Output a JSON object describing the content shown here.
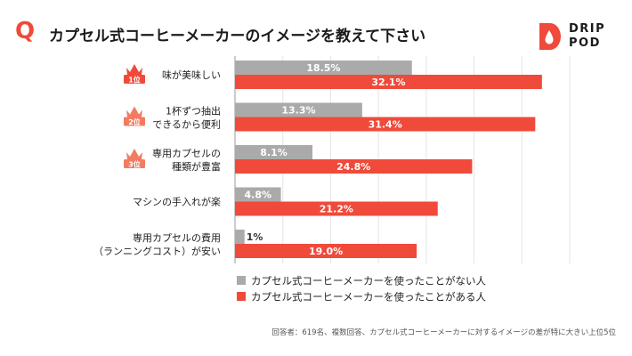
{
  "header": {
    "q_mark": "Q",
    "title": "カプセル式コーヒーメーカーのイメージを教えて下さい"
  },
  "logo": {
    "line1": "DRIP",
    "line2": "POD"
  },
  "footnote": "回答者：619名、複数回答、カプセル式コーヒーメーカーに対するイメージの差が特に大きい上位5位",
  "colors": {
    "accent": "#f04a3a",
    "gray": "#aaaaaa",
    "axis": "#999999",
    "crown": "#f27b62"
  },
  "chart_data": {
    "type": "bar",
    "orientation": "horizontal",
    "categories": [
      [
        "味が美味しい"
      ],
      [
        "1杯ずつ抽出",
        "できるから便利"
      ],
      [
        "専用カプセルの",
        "種類が豊富"
      ],
      [
        "マシンの手入れが楽"
      ],
      [
        "専用カプセルの費用",
        "（ランニングコスト）が安い"
      ]
    ],
    "rank_badges": [
      "1位",
      "2位",
      "3位"
    ],
    "series": [
      {
        "name": "カプセル式コーヒーメーカーを使ったことがない人",
        "values": [
          18.5,
          13.3,
          8.1,
          4.8,
          1
        ],
        "labels": [
          "18.5%",
          "13.3%",
          "8.1%",
          "4.8%",
          "1%"
        ],
        "color": "#aaaaaa"
      },
      {
        "name": "カプセル式コーヒーメーカーを使ったことがある人",
        "values": [
          32.1,
          31.4,
          24.8,
          21.2,
          19.0
        ],
        "labels": [
          "32.1%",
          "31.4%",
          "24.8%",
          "21.2%",
          "19.0%"
        ],
        "color": "#f04a3a"
      }
    ],
    "xlim": [
      0,
      35
    ],
    "grid": true,
    "legend_position": "bottom"
  }
}
